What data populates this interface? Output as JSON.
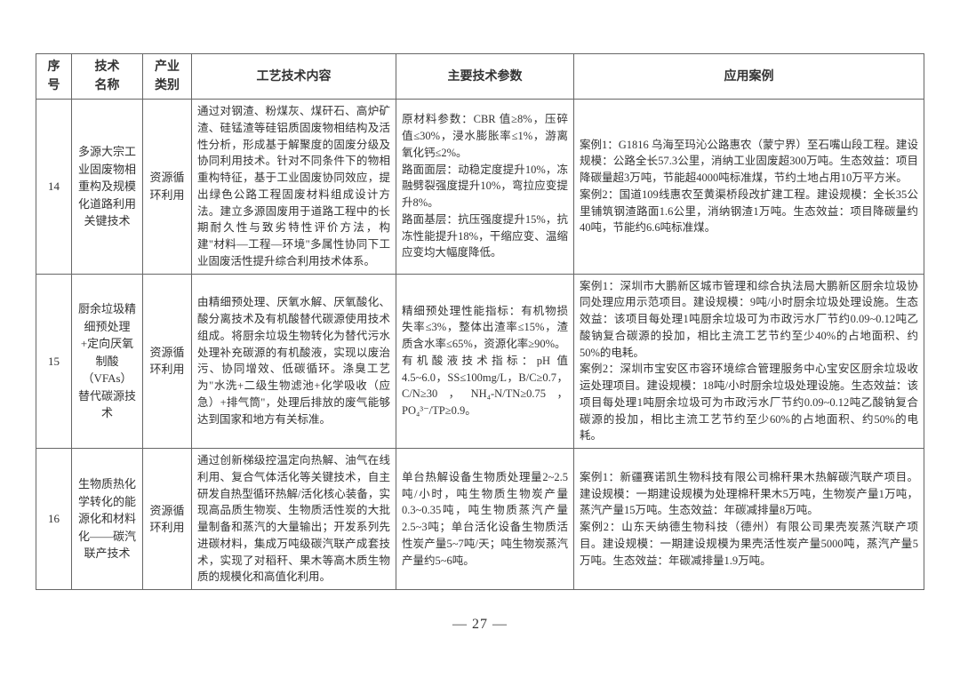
{
  "headers": {
    "seq": "序号",
    "tech": "技术\n名称",
    "ind": "产业\n类别",
    "content": "工艺技术内容",
    "param": "主要技术参数",
    "case": "应用案例"
  },
  "rows": [
    {
      "seq": "14",
      "tech": "多源大宗工业固废物相重构及规模化道路利用关键技术",
      "ind": "资源循环利用",
      "content": "通过对钢渣、粉煤灰、煤矸石、高炉矿渣、硅锰渣等硅铝质固废物相结构及活性分析，形成基于解聚度的固废分级及协同利用技术。针对不同条件下的物相重构特征，基于工业固废协同效应，提出绿色公路工程固废材料组成设计方法。建立多源固废用于道路工程中的长期耐久性与致劣特性评价方法，构建\"材料—工程—环境\"多属性协同下工业固废活性提升综合利用技术体系。",
      "param": "原材料参数：CBR 值≥8%，压碎值≤30%，浸水膨胀率≤1%，游离氧化钙≤2%。\n路面面层：动稳定度提升10%，冻融劈裂强度提升10%，弯拉应变提升8%。\n路面基层：抗压强度提升15%，抗冻性能提升18%，干缩应变、温缩应变均大幅度降低。",
      "case": "案例1：G1816 乌海至玛沁公路惠农（蒙宁界）至石嘴山段工程。建设规模：公路全长57.3公里，消纳工业固废超300万吨。生态效益：项目降碳量超3万吨，节能超4000吨标准煤，节约土地占用10万平方米。\n案例2：国道109线惠农至黄渠桥段改扩建工程。建设规模：全长35公里铺筑钢渣路面1.6公里，消纳钢渣1万吨。生态效益：项目降碳量约40吨，节能约6.6吨标准煤。"
    },
    {
      "seq": "15",
      "tech": "厨余垃圾精细预处理+定向厌氧制酸（VFAs）替代碳源技术",
      "ind": "资源循环利用",
      "content": "由精细预处理、厌氧水解、厌氧酸化、酸分离技术及有机酸替代碳源使用技术组成。将厨余垃圾生物转化为替代污水处理补充碳源的有机酸液，实现以废治污、协同增效、低碳循环。涤臭工艺为\"水洗+二级生物滤池+化学吸收（应急）+排气筒\"，处理后排放的废气能够达到国家和地方有关标准。",
      "param": "精细预处理性能指标：有机物损失率≤3%，整体出渣率≤15%，渣质含水率≤65%，资源化率≥90%。\n有机酸液技术指标：pH 值4.5~6.0，SS≤100mg/L，B/C≥0.7，C/N≥30，NH₄-N/TN≥0.75，PO₄³⁻/TP≥0.9。",
      "case": "案例1：深圳市大鹏新区城市管理和综合执法局大鹏新区厨余垃圾协同处理应用示范项目。建设规模：9吨/小时厨余垃圾处理设施。生态效益：该项目每处理1吨厨余垃圾可为市政污水厂节约0.09~0.12吨乙酸钠复合碳源的投加，相比主流工艺节约至少40%的占地面积、约50%的电耗。\n案例2：深圳市宝安区市容环境综合管理服务中心宝安区厨余垃圾收运处理项目。建设规模：18吨/小时厨余垃圾处理设施。生态效益：该项目每处理1吨厨余垃圾可为市政污水厂节约0.09~0.12吨乙酸钠复合碳源的投加，相比主流工艺节约至少60%的占地面积、约50%的电耗。"
    },
    {
      "seq": "16",
      "tech": "生物质热化学转化的能源化和材料化——碳汽联产技术",
      "ind": "资源循环利用",
      "content": "通过创新梯级控温定向热解、油气在线利用、复合气体活化等关键技术，自主研发自热型循环热解/活化核心装备，实现高品质生物炭、生物质活性炭的大批量制备和蒸汽的大量输出；开发系列先进碳材料，集成万吨级碳汽联产成套技术，实现了对稻秆、果木等高木质生物质的规模化和高值化利用。",
      "param": "单台热解设备生物质处理量2~2.5吨/小时，吨生物质生物炭产量0.3~0.35吨，吨生物质蒸汽产量2.5~3吨；单台活化设备生物质活性炭产量5~7吨/天；吨生物炭蒸汽产量约5~6吨。",
      "case": "案例1：新疆赛诺凯生物科技有限公司棉秆果木热解碳汽联产项目。建设规模：一期建设规模为处理棉秆果木5万吨，生物炭产量1万吨，蒸汽产量15万吨。生态效益：年碳减排量8万吨。\n案例2：山东天纳德生物科技（德州）有限公司果壳炭蒸汽联产项目。建设规模：一期建设规模为果壳活性炭产量5000吨，蒸汽产量5万吨。生态效益：年碳减排量1.9万吨。"
    }
  ],
  "pageNumber": "— 27 —"
}
